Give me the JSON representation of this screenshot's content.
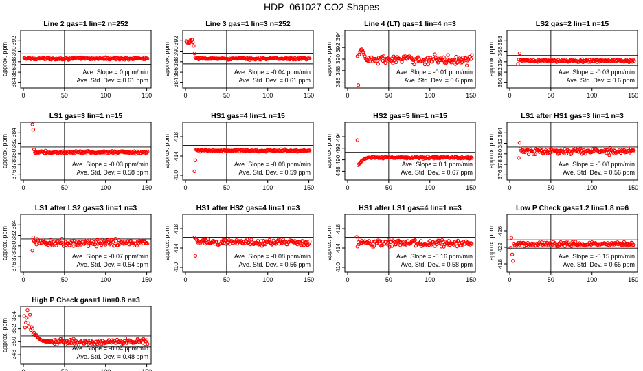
{
  "title": "HDP_061027  CO2 Shapes",
  "ylabel": "approx. ppm",
  "x_ticks": [
    0,
    50,
    100,
    150
  ],
  "xlim": [
    0,
    152
  ],
  "marker_color": "#ff0000",
  "slope_prefix": "Ave. Slope =",
  "slope_unit": "ppm/min",
  "std_prefix": "Ave. Std. Dev. =",
  "std_unit": "ppm",
  "chart_data": [
    {
      "type": "scatter",
      "title": "Line 2 gas=1 lin=2 n=252",
      "ylim": [
        383,
        394
      ],
      "y_ticks": [
        384,
        386,
        388,
        390,
        392
      ],
      "hlines": [
        389.5,
        387.5
      ],
      "slope": "0",
      "std": "0.61",
      "level": 388.6,
      "noise": 0.12,
      "start": 1,
      "end": 151,
      "step": 1,
      "early": []
    },
    {
      "type": "scatter",
      "title": "Line 3 gas=1 lin=3 n=252",
      "ylim": [
        383,
        394
      ],
      "y_ticks": [
        384,
        386,
        388,
        390,
        392
      ],
      "hlines": [
        389.6,
        387.6
      ],
      "slope": "-0.04",
      "std": "0.61",
      "level": 388.6,
      "noise": 0.12,
      "start": 12,
      "end": 151,
      "step": 1,
      "early": [
        [
          1,
          391.9
        ],
        [
          2,
          391.7
        ],
        [
          3,
          391.5
        ],
        [
          4,
          391.8
        ],
        [
          5,
          391.6
        ],
        [
          6,
          392.1
        ],
        [
          7,
          391.9
        ],
        [
          8,
          392.2
        ],
        [
          9,
          391.7
        ],
        [
          10,
          391.0
        ],
        [
          11,
          389.6
        ],
        [
          12,
          388.8
        ]
      ]
    },
    {
      "type": "scatter",
      "title": "Line 4 (LT) gas=1 lin=4 n=3",
      "ylim": [
        385,
        395
      ],
      "y_ticks": [
        386,
        388,
        390,
        392,
        394
      ],
      "hlines": [
        390.9,
        389.0
      ],
      "slope": "-0.01",
      "std": "0.6",
      "level": 389.9,
      "noise": 0.45,
      "start": 22,
      "end": 151,
      "step": 1,
      "early": [
        [
          12,
          390.5
        ],
        [
          13,
          385.5
        ],
        [
          14,
          390.8
        ],
        [
          15,
          391.3
        ],
        [
          16,
          391.6
        ],
        [
          17,
          391.7
        ],
        [
          18,
          391.5
        ],
        [
          19,
          391.2
        ],
        [
          20,
          390.8
        ],
        [
          21,
          390.5
        ]
      ]
    },
    {
      "type": "scatter",
      "title": "LS2 gas=2 lin=1 n=15",
      "ylim": [
        349,
        360
      ],
      "y_ticks": [
        350,
        352,
        354,
        356,
        358
      ],
      "hlines": [
        355.2,
        353.3
      ],
      "slope": "-0.03",
      "std": "0.6",
      "level": 354.2,
      "noise": 0.15,
      "start": 13,
      "end": 151,
      "step": 1,
      "early": [
        [
          10,
          353.6
        ],
        [
          11,
          354.4
        ],
        [
          12,
          355.6
        ]
      ]
    },
    {
      "type": "scatter",
      "title": "LS1 gas=3 lin=1 n=15",
      "ylim": [
        375,
        386
      ],
      "y_ticks": [
        376,
        378,
        380,
        382,
        384
      ],
      "hlines": [
        381.3,
        379.4
      ],
      "slope": "-0.03",
      "std": "0.58",
      "level": 380.3,
      "noise": 0.15,
      "start": 14,
      "end": 151,
      "step": 1,
      "early": [
        [
          11,
          385.6
        ],
        [
          12,
          384.6
        ],
        [
          13,
          380.8
        ]
      ]
    },
    {
      "type": "scatter",
      "title": "HS1 gas=4 lin=1 n=15",
      "ylim": [
        409,
        421
      ],
      "y_ticks": [
        410,
        414,
        418
      ],
      "hlines": [
        416.2,
        414.2
      ],
      "slope": "-0.08",
      "std": "0.59",
      "level": 415.1,
      "noise": 0.15,
      "start": 14,
      "end": 151,
      "step": 1,
      "early": [
        [
          11,
          410.8
        ],
        [
          12,
          413.1
        ],
        [
          13,
          415.3
        ]
      ]
    },
    {
      "type": "scatter",
      "title": "HS2 gas=5 lin=1 n=15",
      "ylim": [
        486.5,
        496.5
      ],
      "y_ticks": [
        488,
        490,
        492,
        494
      ],
      "hlines": [
        491.3,
        489.3
      ],
      "slope": "0.1",
      "std": "0.67",
      "level": 490.4,
      "noise": 0.12,
      "start": 25,
      "end": 151,
      "step": 1,
      "early": [
        [
          12,
          493.4
        ],
        [
          13,
          489.1
        ],
        [
          14,
          489.3
        ],
        [
          15,
          489.4
        ],
        [
          16,
          489.6
        ],
        [
          17,
          489.8
        ],
        [
          18,
          489.9
        ],
        [
          19,
          490.0
        ],
        [
          20,
          490.1
        ],
        [
          21,
          490.2
        ],
        [
          22,
          490.2
        ],
        [
          23,
          490.3
        ],
        [
          24,
          490.3
        ]
      ]
    },
    {
      "type": "scatter",
      "title": "LS1 after HS1 gas=3 lin=1 n=3",
      "ylim": [
        375,
        386
      ],
      "y_ticks": [
        376,
        378,
        380,
        382,
        384
      ],
      "hlines": [
        381.3,
        379.4
      ],
      "slope": "-0.08",
      "std": "0.56",
      "level": 380.5,
      "noise": 0.35,
      "start": 15,
      "end": 151,
      "step": 1,
      "early": [
        [
          11,
          379.2
        ],
        [
          12,
          382.1
        ],
        [
          13,
          381.0
        ],
        [
          14,
          380.6
        ]
      ]
    },
    {
      "type": "scatter",
      "title": "LS1 after LS2 gas=3 lin=1 n=3",
      "ylim": [
        375,
        386
      ],
      "y_ticks": [
        376,
        378,
        380,
        382,
        384
      ],
      "hlines": [
        381.3,
        379.4
      ],
      "slope": "-0.07",
      "std": "0.54",
      "level": 380.6,
      "noise": 0.4,
      "start": 15,
      "end": 151,
      "step": 1,
      "early": [
        [
          11,
          379.1
        ],
        [
          12,
          381.6
        ],
        [
          13,
          380.9
        ],
        [
          14,
          380.7
        ]
      ]
    },
    {
      "type": "scatter",
      "title": "HS1 after HS2 gas=4 lin=1 n=3",
      "ylim": [
        409,
        421
      ],
      "y_ticks": [
        410,
        414,
        418
      ],
      "hlines": [
        416.2,
        414.2
      ],
      "slope": "-0.08",
      "std": "0.56",
      "level": 415.2,
      "noise": 0.4,
      "start": 15,
      "end": 151,
      "step": 1,
      "early": [
        [
          11,
          416.2
        ],
        [
          12,
          412.4
        ],
        [
          13,
          415.9
        ],
        [
          14,
          415.6
        ]
      ]
    },
    {
      "type": "scatter",
      "title": "HS1 after LS1 gas=4 lin=1 n=3",
      "ylim": [
        409,
        421
      ],
      "y_ticks": [
        410,
        414,
        418
      ],
      "hlines": [
        416.2,
        414.2
      ],
      "slope": "-0.16",
      "std": "0.58",
      "level": 415.0,
      "noise": 0.4,
      "start": 15,
      "end": 151,
      "step": 1,
      "early": [
        [
          11,
          416.3
        ],
        [
          12,
          414.3
        ],
        [
          13,
          415.2
        ],
        [
          14,
          414.8
        ]
      ]
    },
    {
      "type": "scatter",
      "title": "Low P Check gas=1.2 lin=1.8 n=6",
      "ylim": [
        416,
        430
      ],
      "y_ticks": [
        418,
        422,
        426
      ],
      "hlines": [
        423.8,
        421.8
      ],
      "slope": "-0.15",
      "std": "0.65",
      "level": 422.8,
      "noise": 0.3,
      "start": 6,
      "end": 151,
      "step": 1,
      "early": [
        [
          1,
          421.9
        ],
        [
          2,
          424.3
        ],
        [
          3,
          420.3
        ],
        [
          4,
          418.7
        ],
        [
          5,
          422.9
        ]
      ]
    },
    {
      "type": "scatter",
      "title": "High P Check gas=1 lin=0.8 n=3",
      "ylim": [
        346.5,
        355.5
      ],
      "y_ticks": [
        348,
        350,
        352,
        354
      ],
      "hlines": [
        350.9,
        349.2
      ],
      "slope": "-0.04",
      "std": "0.48",
      "level": 350.0,
      "noise": 0.25,
      "start": 36,
      "end": 151,
      "step": 1,
      "early": [
        [
          1,
          354.0
        ],
        [
          2,
          352.2
        ],
        [
          3,
          353.0
        ],
        [
          4,
          353.7
        ],
        [
          5,
          354.9
        ],
        [
          6,
          352.9
        ],
        [
          7,
          352.3
        ],
        [
          8,
          354.2
        ],
        [
          9,
          351.8
        ],
        [
          10,
          352.3
        ],
        [
          11,
          352.0
        ],
        [
          12,
          351.2
        ],
        [
          13,
          351.4
        ],
        [
          14,
          351.0
        ],
        [
          15,
          351.2
        ],
        [
          16,
          351.0
        ],
        [
          17,
          350.7
        ],
        [
          18,
          350.6
        ],
        [
          19,
          350.5
        ],
        [
          20,
          350.4
        ],
        [
          21,
          350.3
        ],
        [
          22,
          350.2
        ],
        [
          23,
          350.2
        ],
        [
          24,
          350.1
        ],
        [
          25,
          350.2
        ],
        [
          26,
          350.1
        ],
        [
          27,
          350.0
        ],
        [
          28,
          350.1
        ],
        [
          29,
          350.0
        ],
        [
          30,
          350.1
        ],
        [
          31,
          350.0
        ],
        [
          32,
          350.0
        ],
        [
          33,
          350.1
        ],
        [
          34,
          349.9
        ],
        [
          35,
          350.0
        ]
      ]
    }
  ]
}
